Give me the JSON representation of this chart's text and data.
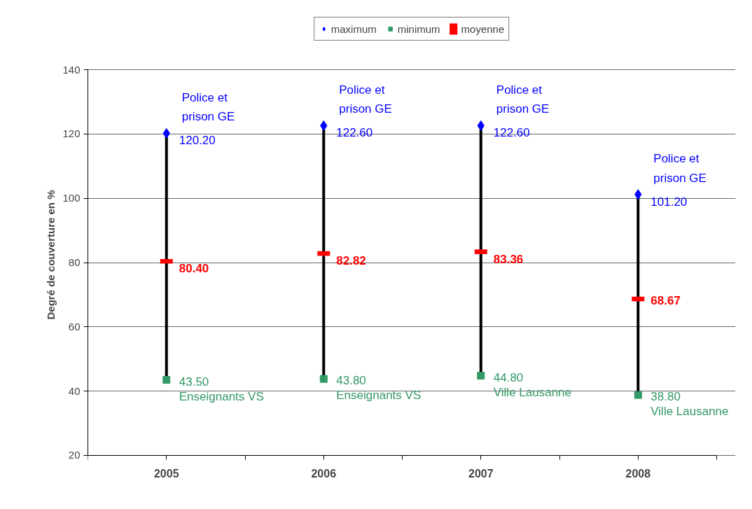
{
  "chart_data": {
    "type": "scatter",
    "ylabel": "Degré de couverture en %",
    "categories": [
      "2005",
      "2006",
      "2007",
      "2008"
    ],
    "series": [
      {
        "name": "maximum",
        "color": "#0000ff",
        "marker": "diamond",
        "values": [
          120.2,
          122.6,
          122.6,
          101.2
        ],
        "value_labels": [
          "120.20",
          "122.60",
          "122.60",
          "101.20"
        ]
      },
      {
        "name": "minimum",
        "color": "#339966",
        "marker": "square",
        "values": [
          43.5,
          43.8,
          44.8,
          38.8
        ],
        "value_labels": [
          "43.50",
          "43.80",
          "44.80",
          "38.80"
        ]
      },
      {
        "name": "moyenne",
        "color": "#ff0000",
        "values": [
          80.4,
          82.82,
          83.36,
          68.67
        ],
        "value_labels": [
          "80.40",
          "82.82",
          "83.36",
          "68.67"
        ]
      }
    ],
    "ylim": [
      20,
      140
    ],
    "yticks": [
      20,
      40,
      60,
      80,
      100,
      120,
      140
    ],
    "grid": "y",
    "legend": "top",
    "annotations": [
      {
        "text": "Police et prison GE",
        "x": "2005",
        "y": 120.2
      },
      {
        "text": "Police et prison GE",
        "x": "2006",
        "y": 122.6
      },
      {
        "text": "Police et prison GE",
        "x": "2007",
        "y": 122.6
      },
      {
        "text": "Police et prison GE",
        "x": "2008",
        "y": 101.2
      },
      {
        "text": "Enseignants VS",
        "x": "2005",
        "y": 43.5
      },
      {
        "text": "Enseignants VS",
        "x": "2006",
        "y": 43.8
      },
      {
        "text": "Ville Lausanne",
        "x": "2007",
        "y": 44.8
      },
      {
        "text": "Ville Lausanne",
        "x": "2008",
        "y": 38.8
      }
    ]
  }
}
